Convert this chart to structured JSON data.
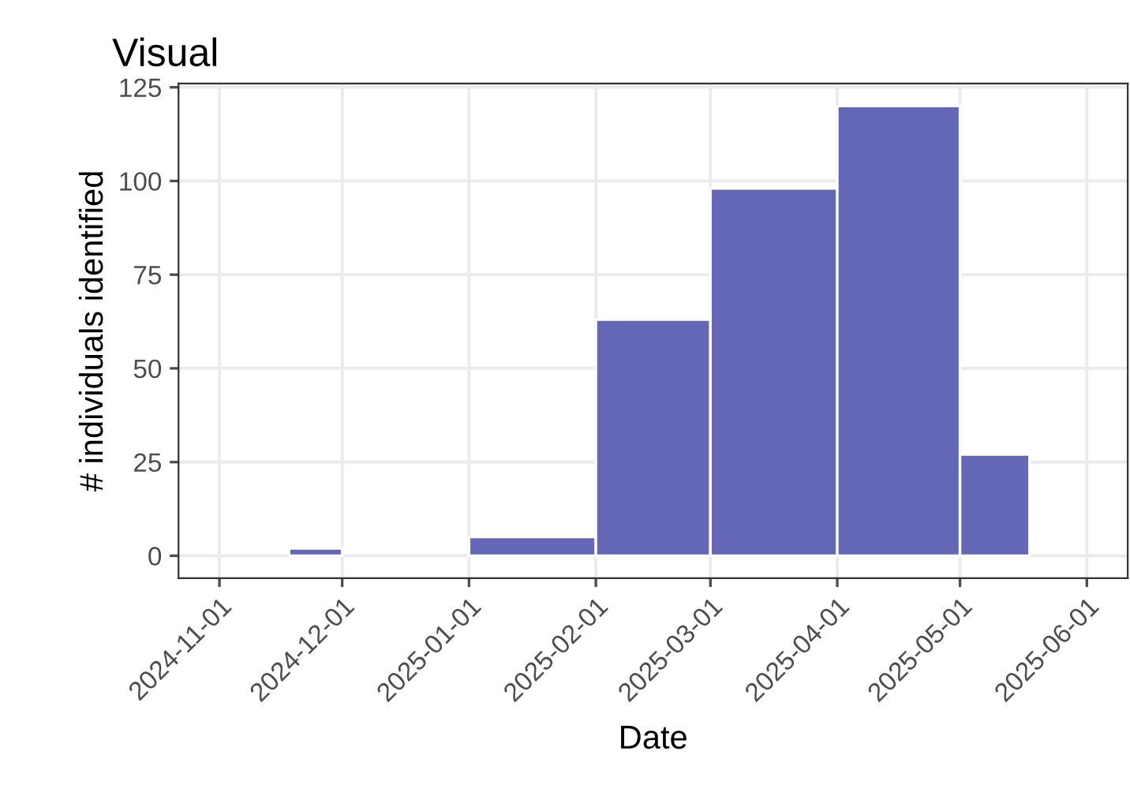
{
  "chart_data": {
    "type": "histogram",
    "title": "Visual",
    "xlabel": "Date",
    "ylabel": "# individuals identified",
    "bins": [
      "2024-11-18",
      "2024-12-01",
      "2025-01-01",
      "2025-02-01",
      "2025-03-01",
      "2025-04-01",
      "2025-05-01",
      "2025-05-18"
    ],
    "values": [
      2,
      0,
      5,
      63,
      98,
      120,
      27
    ],
    "color": "#6466b6",
    "xlim": [
      "2024-10-22",
      "2025-06-11"
    ],
    "xticks": [
      "2024-11-01",
      "2024-12-01",
      "2025-01-01",
      "2025-02-01",
      "2025-03-01",
      "2025-04-01",
      "2025-05-01",
      "2025-06-01"
    ],
    "ylim": [
      -6,
      126
    ],
    "yticks": [
      0,
      25,
      50,
      75,
      100,
      125
    ],
    "grid": true
  }
}
